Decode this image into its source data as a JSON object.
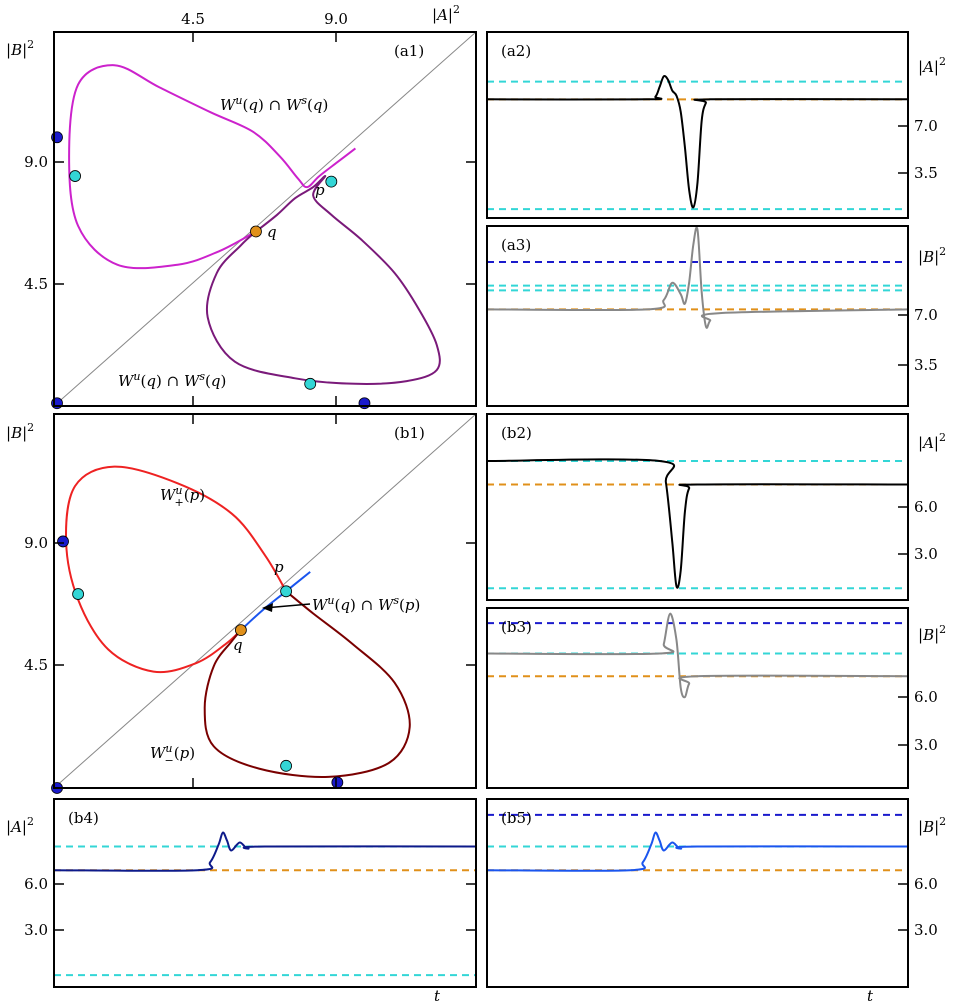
{
  "figure": {
    "colors": {
      "black": "#000000",
      "gray": "#888888",
      "cyan": "#33d6d6",
      "orange": "#e0901a",
      "blue": "#1a1acc",
      "magenta": "#cc22cc",
      "purple": "#7a1a7a",
      "red": "#ee2222",
      "darkred": "#7a0000",
      "navy": "#0d1a8a",
      "bluecurve": "#1a55ee"
    }
  },
  "chart_data": [
    {
      "id": "a1",
      "type": "scatter",
      "panel_label": "(a1)",
      "xlabel": "|A|²",
      "ylabel": "|B|²",
      "xticks": [
        "4.5",
        "9.0"
      ],
      "yticks": [
        "4.5",
        "9.0"
      ],
      "xlim": [
        -0.5,
        13.5
      ],
      "ylim": [
        0,
        13.5
      ],
      "annotations": [
        "W^u(q) ∩ W^s(q)",
        "W^u(q) ∩ W^s(q)",
        "p",
        "q"
      ],
      "points": [
        {
          "name": "p",
          "x": 8.7,
          "y": 8.1,
          "color": "cyan"
        },
        {
          "name": "q",
          "x": 6.2,
          "y": 6.3,
          "color": "orange"
        },
        {
          "name": "",
          "x": 0.2,
          "y": 8.3,
          "color": "cyan"
        },
        {
          "name": "",
          "x": 8.0,
          "y": 0.8,
          "color": "cyan"
        },
        {
          "name": "",
          "x": -0.4,
          "y": 9.7,
          "color": "blue"
        },
        {
          "name": "",
          "x": -0.4,
          "y": 0.1,
          "color": "blue"
        },
        {
          "name": "",
          "x": 9.8,
          "y": 0.1,
          "color": "blue"
        }
      ],
      "curves": [
        {
          "color": "magenta",
          "points": [
            [
              6.2,
              6.3
            ],
            [
              5.0,
              5.6
            ],
            [
              3.6,
              5.1
            ],
            [
              1.6,
              5.1
            ],
            [
              0.3,
              6.5
            ],
            [
              0.0,
              9.0
            ],
            [
              0.3,
              11.6
            ],
            [
              1.5,
              12.3
            ],
            [
              3.0,
              11.5
            ],
            [
              4.7,
              10.6
            ],
            [
              6.1,
              9.9
            ],
            [
              7.0,
              9.0
            ],
            [
              7.6,
              8.2
            ],
            [
              7.9,
              7.9
            ],
            [
              8.3,
              8.3
            ],
            [
              8.9,
              8.8
            ],
            [
              9.5,
              9.3
            ]
          ]
        },
        {
          "color": "purple",
          "points": [
            [
              6.2,
              6.3
            ],
            [
              6.9,
              6.9
            ],
            [
              7.5,
              7.5
            ],
            [
              8.1,
              7.9
            ],
            [
              8.5,
              8.3
            ],
            [
              8.1,
              7.6
            ],
            [
              8.7,
              6.9
            ],
            [
              9.7,
              6.0
            ],
            [
              10.8,
              4.8
            ],
            [
              11.6,
              3.5
            ],
            [
              12.2,
              2.2
            ],
            [
              12.2,
              1.3
            ],
            [
              11.2,
              0.9
            ],
            [
              9.5,
              0.8
            ],
            [
              7.5,
              1.0
            ],
            [
              5.5,
              1.6
            ],
            [
              4.6,
              3.2
            ],
            [
              4.9,
              4.8
            ],
            [
              5.7,
              5.8
            ],
            [
              6.2,
              6.3
            ]
          ]
        }
      ]
    },
    {
      "id": "a2",
      "type": "line",
      "panel_label": "(a2)",
      "ylabel": "|A|²",
      "yticks": [
        "3.5",
        "7.0"
      ],
      "ylim": [
        0,
        10.5
      ],
      "series": [
        {
          "color": "black",
          "values": [
            [
              0,
              6.7
            ],
            [
              0.38,
              6.7
            ],
            [
              0.4,
              6.85
            ],
            [
              0.41,
              7.4
            ],
            [
              0.42,
              8.0
            ],
            [
              0.43,
              7.8
            ],
            [
              0.44,
              7.2
            ],
            [
              0.45,
              6.9
            ],
            [
              0.46,
              6.0
            ],
            [
              0.47,
              4.0
            ],
            [
              0.48,
              1.6
            ],
            [
              0.49,
              0.6
            ],
            [
              0.5,
              2.0
            ],
            [
              0.51,
              5.5
            ],
            [
              0.52,
              6.5
            ],
            [
              0.53,
              6.7
            ],
            [
              1,
              6.7
            ]
          ]
        }
      ],
      "hlines": [
        {
          "y": 7.7,
          "color": "cyan"
        },
        {
          "y": 6.7,
          "color": "orange"
        },
        {
          "y": 0.5,
          "color": "cyan"
        },
        {
          "y": 0.0,
          "color": "blue"
        }
      ]
    },
    {
      "id": "a3",
      "type": "line",
      "panel_label": "(a3)",
      "ylabel": "|B|²",
      "yticks": [
        "3.5",
        "7.0"
      ],
      "ylim": [
        2,
        11.5
      ],
      "series": [
        {
          "color": "gray",
          "values": [
            [
              0,
              7.1
            ],
            [
              0.38,
              7.1
            ],
            [
              0.42,
              7.6
            ],
            [
              0.44,
              8.5
            ],
            [
              0.46,
              7.9
            ],
            [
              0.47,
              7.4
            ],
            [
              0.48,
              8.5
            ],
            [
              0.49,
              10.5
            ],
            [
              0.5,
              11.3
            ],
            [
              0.51,
              8.0
            ],
            [
              0.52,
              6.2
            ],
            [
              0.53,
              6.5
            ],
            [
              0.55,
              6.9
            ],
            [
              1,
              7.1
            ]
          ]
        }
      ],
      "hlines": [
        {
          "y": 9.6,
          "color": "blue"
        },
        {
          "y": 8.35,
          "color": "cyan"
        },
        {
          "y": 8.1,
          "color": "cyan"
        },
        {
          "y": 7.1,
          "color": "orange"
        },
        {
          "y": 2.0,
          "color": "blue"
        }
      ]
    },
    {
      "id": "b1",
      "type": "scatter",
      "panel_label": "(b1)",
      "ylabel": "|B|²",
      "yticks": [
        "4.5",
        "9.0"
      ],
      "xlim": [
        -0.5,
        13.5
      ],
      "ylim": [
        0,
        13.5
      ],
      "annotations": [
        "W^u_+(p)",
        "W^u_-(p)",
        "W^u(q) ∩ W^s(p)",
        "p",
        "q"
      ],
      "points": [
        {
          "name": "p",
          "x": 7.2,
          "y": 7.1,
          "color": "cyan"
        },
        {
          "name": "q",
          "x": 5.7,
          "y": 5.7,
          "color": "orange"
        },
        {
          "name": "",
          "x": 0.3,
          "y": 7.0,
          "color": "cyan"
        },
        {
          "name": "",
          "x": 7.2,
          "y": 0.8,
          "color": "cyan"
        },
        {
          "name": "",
          "x": -0.2,
          "y": 8.9,
          "color": "blue"
        },
        {
          "name": "",
          "x": -0.4,
          "y": 0.0,
          "color": "blue"
        },
        {
          "name": "",
          "x": 8.9,
          "y": 0.2,
          "color": "blue"
        }
      ],
      "curves": [
        {
          "color": "red",
          "points": [
            [
              7.2,
              7.1
            ],
            [
              6.5,
              8.4
            ],
            [
              5.4,
              9.9
            ],
            [
              3.6,
              11.0
            ],
            [
              1.5,
              11.6
            ],
            [
              0.2,
              10.9
            ],
            [
              -0.1,
              8.9
            ],
            [
              0.3,
              6.8
            ],
            [
              1.3,
              5.0
            ],
            [
              2.8,
              4.2
            ],
            [
              4.2,
              4.5
            ],
            [
              5.2,
              5.2
            ],
            [
              5.7,
              5.7
            ]
          ]
        },
        {
          "color": "darkred",
          "points": [
            [
              7.2,
              7.1
            ],
            [
              8.1,
              6.3
            ],
            [
              9.4,
              5.2
            ],
            [
              10.8,
              3.8
            ],
            [
              11.3,
              2.2
            ],
            [
              10.6,
              0.9
            ],
            [
              8.6,
              0.4
            ],
            [
              6.3,
              0.7
            ],
            [
              4.8,
              1.5
            ],
            [
              4.5,
              2.9
            ],
            [
              4.8,
              4.4
            ],
            [
              5.4,
              5.3
            ],
            [
              5.7,
              5.7
            ]
          ]
        },
        {
          "color": "bluecurve",
          "points": [
            [
              5.7,
              5.7
            ],
            [
              6.4,
              6.4
            ],
            [
              7.2,
              7.1
            ],
            [
              8.0,
              7.8
            ]
          ]
        }
      ]
    },
    {
      "id": "b2",
      "type": "line",
      "panel_label": "(b2)",
      "ylabel": "|A|²",
      "yticks": [
        "3.0",
        "6.0"
      ],
      "ylim": [
        0,
        9.5
      ],
      "series": [
        {
          "color": "black",
          "values": [
            [
              0,
              7.1
            ],
            [
              0.41,
              7.1
            ],
            [
              0.425,
              6.0
            ],
            [
              0.44,
              3.0
            ],
            [
              0.45,
              0.7
            ],
            [
              0.46,
              1.5
            ],
            [
              0.47,
              4.5
            ],
            [
              0.48,
              5.7
            ],
            [
              0.5,
              5.9
            ],
            [
              1,
              5.9
            ]
          ]
        }
      ],
      "hlines": [
        {
          "y": 7.1,
          "color": "cyan"
        },
        {
          "y": 5.9,
          "color": "orange"
        },
        {
          "y": 0.6,
          "color": "cyan"
        },
        {
          "y": 0.0,
          "color": "blue"
        }
      ]
    },
    {
      "id": "b3",
      "type": "line",
      "panel_label": "(b3)",
      "ylabel": "|B|²",
      "yticks": [
        "3.0",
        "6.0"
      ],
      "ylim": [
        0,
        9.5
      ],
      "series": [
        {
          "color": "gray",
          "values": [
            [
              0,
              7.1
            ],
            [
              0.41,
              7.1
            ],
            [
              0.42,
              7.6
            ],
            [
              0.435,
              9.2
            ],
            [
              0.45,
              7.8
            ],
            [
              0.46,
              5.3
            ],
            [
              0.47,
              4.8
            ],
            [
              0.48,
              5.5
            ],
            [
              0.5,
              5.9
            ],
            [
              1,
              5.9
            ]
          ]
        }
      ],
      "hlines": [
        {
          "y": 8.7,
          "color": "blue"
        },
        {
          "y": 7.1,
          "color": "cyan"
        },
        {
          "y": 5.9,
          "color": "orange"
        },
        {
          "y": 0.0,
          "color": "blue"
        }
      ]
    },
    {
      "id": "b4",
      "type": "line",
      "panel_label": "(b4)",
      "ylabel": "|A|²",
      "xlabel": "t",
      "yticks": [
        "3.0",
        "6.0"
      ],
      "ylim": [
        0,
        9.5
      ],
      "series": [
        {
          "color": "navy",
          "values": [
            [
              0,
              5.9
            ],
            [
              0.34,
              5.9
            ],
            [
              0.37,
              6.3
            ],
            [
              0.39,
              7.2
            ],
            [
              0.4,
              7.8
            ],
            [
              0.41,
              7.4
            ],
            [
              0.42,
              6.9
            ],
            [
              0.44,
              7.3
            ],
            [
              0.46,
              7.0
            ],
            [
              0.5,
              7.1
            ],
            [
              1,
              7.1
            ]
          ]
        }
      ],
      "hlines": [
        {
          "y": 7.1,
          "color": "cyan"
        },
        {
          "y": 5.9,
          "color": "orange"
        },
        {
          "y": 0.6,
          "color": "cyan"
        },
        {
          "y": 0.0,
          "color": "blue"
        }
      ]
    },
    {
      "id": "b5",
      "type": "line",
      "panel_label": "(b5)",
      "ylabel": "|B|²",
      "xlabel": "t",
      "yticks": [
        "3.0",
        "6.0"
      ],
      "ylim": [
        0,
        9.5
      ],
      "series": [
        {
          "color": "bluecurve",
          "values": [
            [
              0,
              5.9
            ],
            [
              0.34,
              5.9
            ],
            [
              0.37,
              6.3
            ],
            [
              0.39,
              7.2
            ],
            [
              0.4,
              7.8
            ],
            [
              0.41,
              7.4
            ],
            [
              0.42,
              6.9
            ],
            [
              0.44,
              7.3
            ],
            [
              0.46,
              7.0
            ],
            [
              0.5,
              7.1
            ],
            [
              1,
              7.1
            ]
          ]
        }
      ],
      "hlines": [
        {
          "y": 8.7,
          "color": "blue"
        },
        {
          "y": 7.1,
          "color": "cyan"
        },
        {
          "y": 5.9,
          "color": "orange"
        },
        {
          "y": 0.0,
          "color": "blue"
        }
      ]
    }
  ]
}
